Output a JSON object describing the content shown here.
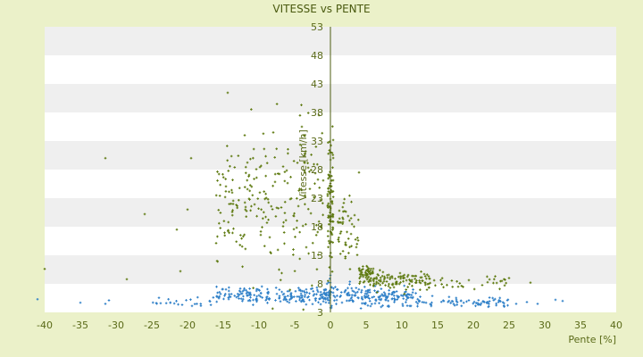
{
  "chart_data": {
    "type": "scatter",
    "title": "VITESSE vs PENTE",
    "xlabel": "Pente [%]",
    "ylabel": "Vitesse [km/h]",
    "xlim": [
      -40,
      40
    ],
    "ylim": [
      3,
      53
    ],
    "x_ticks": [
      -40,
      -35,
      -30,
      -25,
      -20,
      -15,
      -10,
      -5,
      0,
      5,
      10,
      15,
      20,
      25,
      30,
      35,
      40
    ],
    "y_ticks": [
      3,
      8,
      13,
      18,
      23,
      28,
      33,
      38,
      43,
      48,
      53
    ],
    "grid": "horizontal alternating bands",
    "legend": "none",
    "series": [
      {
        "color": "#2f80c8",
        "marker": "plus",
        "clusters": [
          {
            "x_range": [
              -16,
              -1
            ],
            "y_mean": 6.0,
            "y_spread": 0.7,
            "count": 180
          },
          {
            "x_range": [
              -1,
              0
            ],
            "y_mean": 6.3,
            "y_spread": 0.9,
            "count": 40
          },
          {
            "x_range": [
              0,
              12
            ],
            "y_mean": 5.8,
            "y_spread": 0.8,
            "count": 180
          },
          {
            "x_range": [
              12,
              25
            ],
            "y_mean": 4.8,
            "y_spread": 0.4,
            "count": 80
          },
          {
            "x_range": [
              -25,
              -16
            ],
            "y_mean": 4.9,
            "y_spread": 0.5,
            "count": 25
          }
        ],
        "points": [
          {
            "x": -41,
            "y": 5.3
          },
          {
            "x": -35,
            "y": 4.7
          },
          {
            "x": -31.5,
            "y": 4.5
          },
          {
            "x": -31,
            "y": 5.1
          },
          {
            "x": 26,
            "y": 4.5
          },
          {
            "x": 27.5,
            "y": 4.8
          },
          {
            "x": 29,
            "y": 4.5
          },
          {
            "x": 31.5,
            "y": 5.2
          },
          {
            "x": 32.5,
            "y": 5.0
          },
          {
            "x": 0,
            "y": 3.8
          },
          {
            "x": 0,
            "y": 8.2
          },
          {
            "x": 0,
            "y": 9.5
          }
        ]
      },
      {
        "color": "#5e7a10",
        "marker": "plus",
        "clusters": [
          {
            "x_range": [
              -16,
              -1
            ],
            "y_mean": 22,
            "y_spread": 6.5,
            "count": 230
          },
          {
            "x_range": [
              -0.4,
              0.4
            ],
            "y_mean": 21,
            "y_spread": 6,
            "count": 90
          },
          {
            "x_range": [
              1,
              4
            ],
            "y_mean": 18,
            "y_spread": 3.5,
            "count": 50
          },
          {
            "x_range": [
              4,
              6
            ],
            "y_mean": 9.5,
            "y_spread": 0.9,
            "count": 60
          },
          {
            "x_range": [
              6,
              14
            ],
            "y_mean": 8.5,
            "y_spread": 0.8,
            "count": 110
          },
          {
            "x_range": [
              14,
              25
            ],
            "y_mean": 8.2,
            "y_spread": 0.6,
            "count": 30
          }
        ],
        "points": [
          {
            "x": -40,
            "y": 10.6
          },
          {
            "x": -28.5,
            "y": 8.8
          },
          {
            "x": -26,
            "y": 20.2
          },
          {
            "x": -21,
            "y": 10.2
          },
          {
            "x": -19.5,
            "y": 30.0
          },
          {
            "x": -20,
            "y": 21.0
          },
          {
            "x": -21.5,
            "y": 17.5
          },
          {
            "x": -31.5,
            "y": 30.0
          },
          {
            "x": -12,
            "y": 34.0
          },
          {
            "x": -8,
            "y": 34.5
          },
          {
            "x": -4,
            "y": 35.5
          },
          {
            "x": 4,
            "y": 27.5
          },
          {
            "x": 28,
            "y": 8.2
          },
          {
            "x": 25,
            "y": 9.0
          },
          {
            "x": 24,
            "y": 8.5
          }
        ]
      }
    ]
  }
}
